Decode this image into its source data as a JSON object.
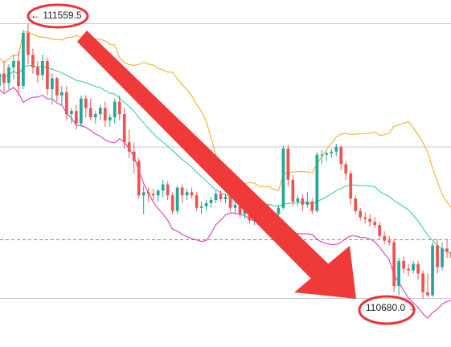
{
  "chart_data": {
    "type": "candlestick",
    "price_range": [
      110540,
      111620
    ],
    "candle_count": 95,
    "up_color": "#26a69a",
    "down_color": "#ef5350",
    "overlays": [
      {
        "kind": "bollinger-upper",
        "color": "#f5b53a"
      },
      {
        "kind": "bollinger-middle",
        "color": "#4fd1a6"
      },
      {
        "kind": "bollinger-lower",
        "color": "#d24fc4"
      }
    ],
    "horizontal_lines": [
      {
        "price": 111559.5,
        "style": "solid",
        "color": "#c8c8c8"
      },
      {
        "price": 111165,
        "style": "solid",
        "color": "#c8c8c8"
      },
      {
        "price": 110868,
        "style": "dashed",
        "color": "#e06666"
      },
      {
        "price": 110680.0,
        "style": "solid",
        "color": "#c8c8c8"
      }
    ],
    "annotations": [
      {
        "kind": "high-marker",
        "arrow": "←",
        "price": 111559.5,
        "text": "111559.5"
      },
      {
        "kind": "low-marker",
        "arrow": "→",
        "price": 110680.0,
        "text": "110680.0"
      }
    ],
    "trend_arrow": {
      "color": "#f03a3a",
      "direction": "down"
    },
    "circle_color": "#e8343a",
    "ohlc": [
      [
        111360,
        111420,
        111330,
        111400
      ],
      [
        111400,
        111440,
        111340,
        111370
      ],
      [
        111370,
        111430,
        111350,
        111420
      ],
      [
        111420,
        111460,
        111380,
        111440
      ],
      [
        111440,
        111470,
        111330,
        111360
      ],
      [
        111360,
        111540,
        111350,
        111530
      ],
      [
        111530,
        111560,
        111430,
        111460
      ],
      [
        111460,
        111480,
        111400,
        111420
      ],
      [
        111420,
        111440,
        111370,
        111395
      ],
      [
        111395,
        111460,
        111380,
        111440
      ],
      [
        111440,
        111450,
        111330,
        111350
      ],
      [
        111350,
        111400,
        111300,
        111385
      ],
      [
        111385,
        111390,
        111310,
        111330
      ],
      [
        111330,
        111360,
        111300,
        111340
      ],
      [
        111340,
        111360,
        111250,
        111270
      ],
      [
        111270,
        111290,
        111240,
        111280
      ],
      [
        111280,
        111300,
        111220,
        111240
      ],
      [
        111240,
        111330,
        111230,
        111320
      ],
      [
        111320,
        111330,
        111260,
        111290
      ],
      [
        111290,
        111320,
        111250,
        111260
      ],
      [
        111260,
        111280,
        111240,
        111270
      ],
      [
        111270,
        111300,
        111250,
        111290
      ],
      [
        111290,
        111310,
        111230,
        111250
      ],
      [
        111250,
        111270,
        111230,
        111260
      ],
      [
        111260,
        111320,
        111240,
        111310
      ],
      [
        111310,
        111330,
        111250,
        111270
      ],
      [
        111270,
        111290,
        111160,
        111180
      ],
      [
        111180,
        111220,
        111130,
        111150
      ],
      [
        111150,
        111180,
        111080,
        111120
      ],
      [
        111120,
        111130,
        111000,
        111010
      ],
      [
        111010,
        111040,
        110950,
        111020
      ],
      [
        111020,
        111035,
        110990,
        111015
      ],
      [
        111015,
        111030,
        110995,
        111010
      ],
      [
        111010,
        111030,
        110990,
        111025
      ],
      [
        111025,
        111060,
        111005,
        111045
      ],
      [
        111045,
        111055,
        110995,
        111010
      ],
      [
        111010,
        111020,
        110950,
        110960
      ],
      [
        110960,
        111040,
        110950,
        111035
      ],
      [
        111035,
        111045,
        110985,
        111010
      ],
      [
        111010,
        111030,
        110995,
        111020
      ],
      [
        111020,
        111035,
        111000,
        111010
      ],
      [
        111010,
        111020,
        110960,
        110970
      ],
      [
        110970,
        110990,
        110950,
        110975
      ],
      [
        110975,
        110995,
        110960,
        110985
      ],
      [
        110985,
        111005,
        110970,
        110995
      ],
      [
        110995,
        111025,
        110985,
        111015
      ],
      [
        111015,
        111025,
        110990,
        110998
      ],
      [
        110998,
        111015,
        110985,
        111005
      ],
      [
        111005,
        111015,
        110960,
        110970
      ],
      [
        110970,
        110990,
        110950,
        110980
      ],
      [
        110980,
        110990,
        110940,
        110950
      ],
      [
        110950,
        110975,
        110935,
        110965
      ],
      [
        110965,
        110975,
        110920,
        110930
      ],
      [
        110930,
        110950,
        110915,
        110940
      ],
      [
        110940,
        110970,
        110925,
        110960
      ],
      [
        110960,
        110990,
        110950,
        110970
      ],
      [
        110970,
        110980,
        110930,
        110940
      ],
      [
        110940,
        110960,
        110925,
        110950
      ],
      [
        110950,
        110980,
        110940,
        110970
      ],
      [
        110970,
        111170,
        110965,
        111160
      ],
      [
        111160,
        111170,
        111040,
        111060
      ],
      [
        111060,
        111075,
        110975,
        110990
      ],
      [
        110990,
        111010,
        110975,
        111000
      ],
      [
        111000,
        111015,
        110960,
        110980
      ],
      [
        110980,
        111020,
        110970,
        110990
      ],
      [
        110990,
        111000,
        110950,
        110960
      ],
      [
        110960,
        111150,
        110955,
        111140
      ],
      [
        111140,
        111155,
        111110,
        111140
      ],
      [
        111140,
        111150,
        111120,
        111145
      ],
      [
        111145,
        111160,
        111130,
        111150
      ],
      [
        111150,
        111175,
        111135,
        111165
      ],
      [
        111165,
        111170,
        111090,
        111110
      ],
      [
        111110,
        111120,
        111060,
        111080
      ],
      [
        111080,
        111090,
        110980,
        111000
      ],
      [
        111000,
        111010,
        110950,
        110960
      ],
      [
        110960,
        110970,
        110930,
        110940
      ],
      [
        110940,
        110955,
        110920,
        110935
      ],
      [
        110935,
        110950,
        110910,
        110925
      ],
      [
        110925,
        110940,
        110905,
        110915
      ],
      [
        110915,
        110925,
        110870,
        110880
      ],
      [
        110880,
        110895,
        110855,
        110865
      ],
      [
        110865,
        110880,
        110850,
        110860
      ],
      [
        110860,
        110870,
        110700,
        110720
      ],
      [
        110720,
        110810,
        110690,
        110800
      ],
      [
        110800,
        110815,
        110760,
        110775
      ],
      [
        110775,
        110790,
        110750,
        110770
      ],
      [
        110770,
        110800,
        110760,
        110790
      ],
      [
        110790,
        110800,
        110740,
        110760
      ],
      [
        110760,
        110770,
        110680,
        110700
      ],
      [
        110700,
        110760,
        110685,
        110690
      ],
      [
        110690,
        110860,
        110685,
        110850
      ],
      [
        110850,
        110870,
        110760,
        110780
      ],
      [
        110780,
        110860,
        110770,
        110840
      ],
      [
        110840,
        110870,
        110810,
        110830
      ],
      [
        110830,
        110860,
        110800,
        110810
      ]
    ]
  }
}
